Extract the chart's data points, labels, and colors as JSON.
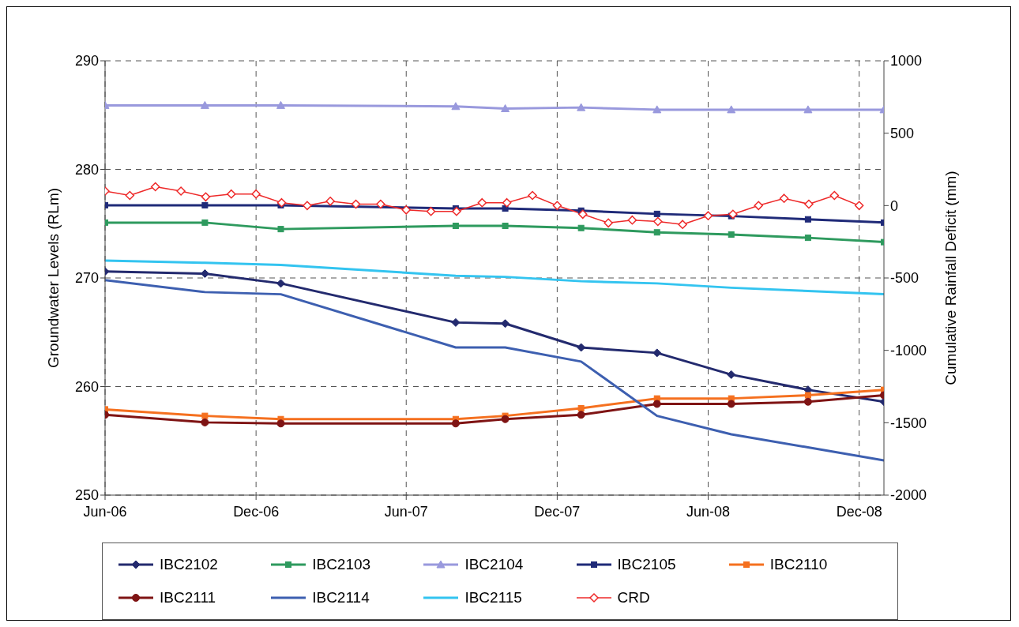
{
  "chart_data": {
    "type": "line",
    "ylabel": "Groundwater Levels (RLm)",
    "y2label": "Cumulative Rainfall Deficit (mm)",
    "x": [
      "2006-06-01",
      "2006-09-30",
      "2006-12-31",
      "2007-07-31",
      "2007-09-29",
      "2007-12-30",
      "2008-03-31",
      "2008-06-29",
      "2008-09-30",
      "2008-12-31"
    ],
    "xlim": [
      "2006-06-01",
      "2008-12-31"
    ],
    "xticks": [
      {
        "value": "2006-06-01",
        "label": "Jun-06"
      },
      {
        "value": "2006-12-01",
        "label": "Dec-06"
      },
      {
        "value": "2007-06-01",
        "label": "Jun-07"
      },
      {
        "value": "2007-12-01",
        "label": "Dec-07"
      },
      {
        "value": "2008-06-01",
        "label": "Jun-08"
      },
      {
        "value": "2008-12-01",
        "label": "Dec-08"
      }
    ],
    "ylim": [
      250,
      290
    ],
    "yticks": [
      250,
      260,
      270,
      280,
      290
    ],
    "y2lim": [
      -2000,
      1000
    ],
    "y2ticks": [
      -2000,
      -1500,
      -1000,
      -500,
      0,
      500,
      1000
    ],
    "grid": true,
    "legend": "bottom",
    "line_style": "solid",
    "series": [
      {
        "name": "IBC2102",
        "color": "#232a6e",
        "marker": "diamond",
        "values": [
          270.6,
          270.4,
          269.5,
          265.9,
          265.8,
          263.6,
          263.1,
          261.1,
          259.7,
          258.6
        ]
      },
      {
        "name": "IBC2103",
        "color": "#2e9a5e",
        "marker": "square",
        "values": [
          275.1,
          275.1,
          274.5,
          274.8,
          274.8,
          274.6,
          274.2,
          274.0,
          273.7,
          273.3
        ]
      },
      {
        "name": "IBC2104",
        "color": "#9999dd",
        "marker": "triangle",
        "values": [
          285.9,
          285.9,
          285.9,
          285.8,
          285.6,
          285.7,
          285.5,
          285.5,
          285.5,
          285.5
        ]
      },
      {
        "name": "IBC2105",
        "color": "#1f2a78",
        "marker": "square",
        "values": [
          276.7,
          276.7,
          276.7,
          276.4,
          276.4,
          276.2,
          275.9,
          275.7,
          275.4,
          275.1
        ]
      },
      {
        "name": "IBC2110",
        "color": "#f5701f",
        "marker": "square",
        "values": [
          257.9,
          257.3,
          257.0,
          257.0,
          257.3,
          258.0,
          258.9,
          258.9,
          259.2,
          259.7
        ]
      },
      {
        "name": "IBC2111",
        "color": "#7f1414",
        "marker": "circle",
        "values": [
          257.4,
          256.7,
          256.6,
          256.6,
          257.0,
          257.4,
          258.4,
          258.4,
          258.6,
          259.2
        ]
      },
      {
        "name": "IBC2114",
        "color": "#3d5fb0",
        "marker": "none",
        "values": [
          269.8,
          268.7,
          268.5,
          263.6,
          263.6,
          262.3,
          257.3,
          255.6,
          254.4,
          253.2
        ]
      },
      {
        "name": "IBC2115",
        "color": "#33c4f0",
        "marker": "none",
        "values": [
          271.6,
          271.4,
          271.2,
          270.2,
          270.1,
          269.7,
          269.5,
          269.1,
          268.8,
          268.5
        ]
      },
      {
        "name": "CRD",
        "color": "#ee2a2a",
        "marker": "diamond",
        "axis": "y2",
        "x": [
          "2006-06",
          "2006-07",
          "2006-08",
          "2006-09",
          "2006-10",
          "2006-11",
          "2006-12",
          "2007-01",
          "2007-02",
          "2007-03",
          "2007-04",
          "2007-05",
          "2007-06",
          "2007-07",
          "2007-08",
          "2007-09",
          "2007-10",
          "2007-11",
          "2007-12",
          "2008-01",
          "2008-02",
          "2008-03",
          "2008-04",
          "2008-05",
          "2008-06",
          "2008-07",
          "2008-08",
          "2008-09",
          "2008-10",
          "2008-11",
          "2008-12"
        ],
        "values": [
          100,
          70,
          130,
          100,
          60,
          80,
          80,
          20,
          0,
          30,
          10,
          10,
          -30,
          -40,
          -40,
          20,
          20,
          70,
          0,
          -60,
          -120,
          -100,
          -110,
          -130,
          -70,
          -60,
          0,
          50,
          10,
          70,
          0
        ]
      }
    ]
  }
}
